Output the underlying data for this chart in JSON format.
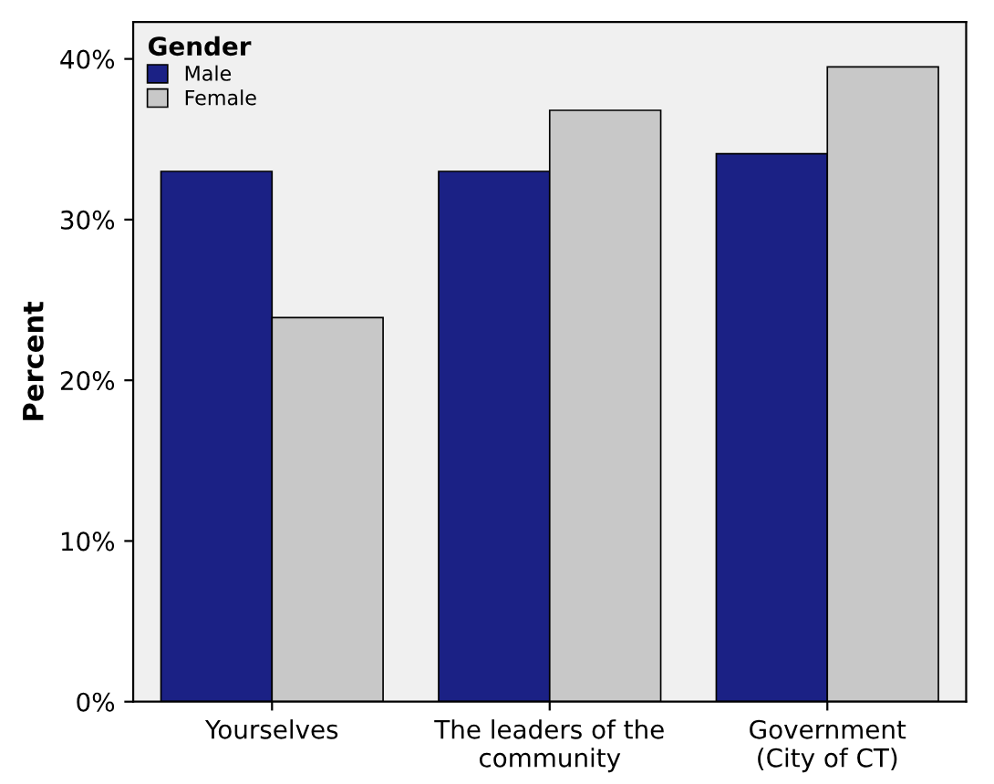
{
  "chart_data": {
    "type": "bar",
    "ylabel": "Percent",
    "legend_title": "Gender",
    "categories": [
      "Yourselves",
      "The leaders of the\ncommunity",
      "Government\n(City of CT)"
    ],
    "series": [
      {
        "name": "Male",
        "color": "#1b2185",
        "values": [
          33.0,
          33.0,
          34.1
        ]
      },
      {
        "name": "Female",
        "color": "#c8c8c8",
        "values": [
          23.9,
          36.8,
          39.5
        ]
      }
    ],
    "ylim": [
      0,
      42.3
    ],
    "yticks": [
      {
        "value": 0,
        "label": "0%"
      },
      {
        "value": 10,
        "label": "10%"
      },
      {
        "value": 20,
        "label": "20%"
      },
      {
        "value": 30,
        "label": "30%"
      },
      {
        "value": 40,
        "label": "40%"
      }
    ],
    "grid": false,
    "legend": "top left"
  }
}
